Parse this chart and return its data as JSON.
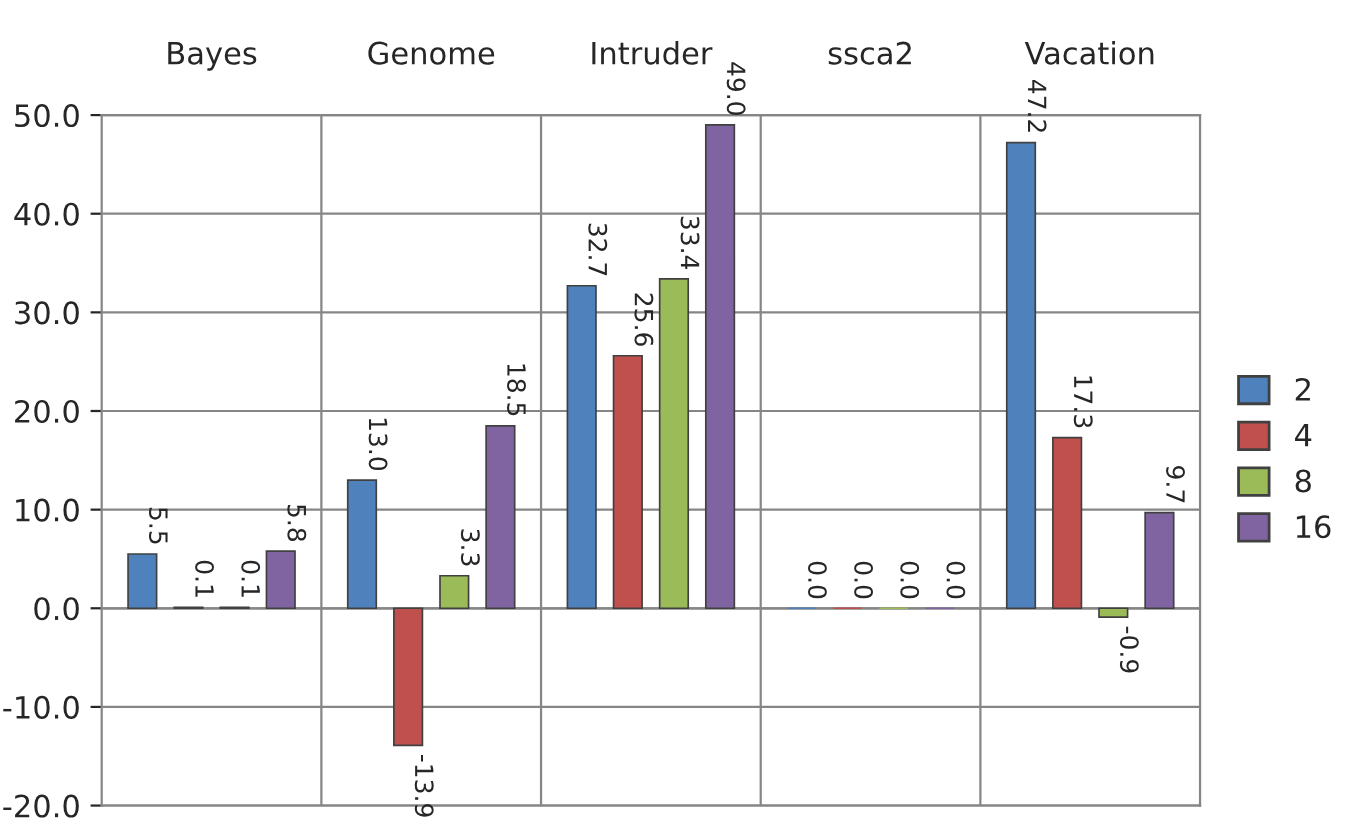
{
  "chart_data": {
    "type": "bar",
    "categories": [
      "Bayes",
      "Genome",
      "Intruder",
      "ssca2",
      "Vacation"
    ],
    "series": [
      {
        "name": "2",
        "color": "#4f81bd",
        "values": [
          5.5,
          13.0,
          32.7,
          0.0,
          47.2
        ],
        "value_labels": [
          "5.5",
          "13.0",
          "32.7",
          "0.0",
          "47.2"
        ]
      },
      {
        "name": "4",
        "color": "#c0504d",
        "values": [
          0.1,
          -13.9,
          25.6,
          0.0,
          17.3
        ],
        "value_labels": [
          "0.1",
          "-13.9",
          "25.6",
          "0.0",
          "17.3"
        ]
      },
      {
        "name": "8",
        "color": "#9bbb59",
        "values": [
          0.1,
          3.3,
          33.4,
          0.0,
          -0.9
        ],
        "value_labels": [
          "0.1",
          "3.3",
          "33.4",
          "0.0",
          "-0.9"
        ]
      },
      {
        "name": "16",
        "color": "#8064a2",
        "values": [
          5.8,
          18.5,
          49.0,
          0.0,
          9.7
        ],
        "value_labels": [
          "5.8",
          "18.5",
          "49.0",
          "0.0",
          "9.7"
        ]
      }
    ],
    "ylim": [
      -20,
      50
    ],
    "yticks": [
      {
        "value": -20,
        "label": "-20.0"
      },
      {
        "value": -10,
        "label": "-10.0"
      },
      {
        "value": 0,
        "label": "0.0"
      },
      {
        "value": 10,
        "label": "10.0"
      },
      {
        "value": 20,
        "label": "20.0"
      },
      {
        "value": 30,
        "label": "30.0"
      },
      {
        "value": 40,
        "label": "40.0"
      },
      {
        "value": 50,
        "label": "50.0"
      }
    ],
    "grid": true,
    "legend": "right"
  }
}
